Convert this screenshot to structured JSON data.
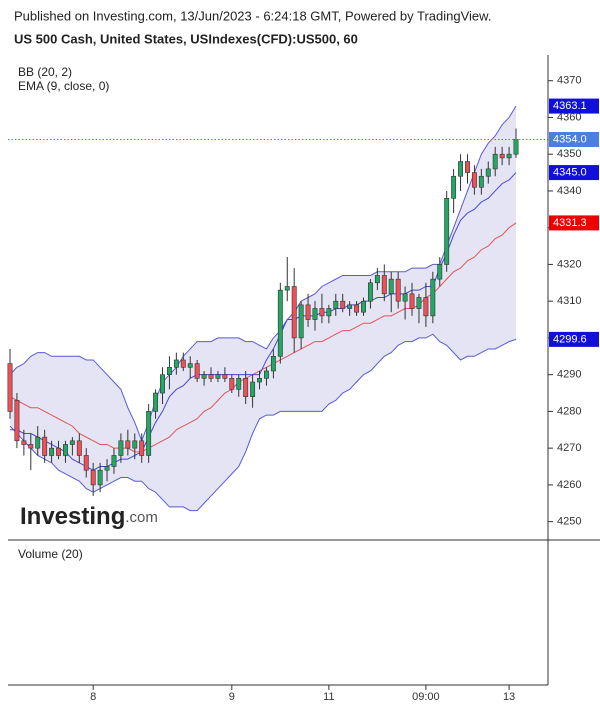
{
  "header": {
    "published": "Published on Investing.com, 13/Jun/2023 - 6:24:18 GMT, Powered by TradingView.",
    "symbol": "US 500 Cash, United States, USIndexes(CFD):US500, 60"
  },
  "watermark": {
    "brand": "Investing",
    "suffix": ".com"
  },
  "volume_pane": {
    "label": "Volume (20)"
  },
  "chart_data": {
    "type": "candlestick",
    "indicators": [
      "BB (20, 2)",
      "EMA (9, close, 0)"
    ],
    "categories": [
      null,
      null,
      null,
      null,
      null,
      null,
      null,
      null,
      null,
      null,
      null,
      null,
      "8",
      null,
      null,
      null,
      null,
      null,
      null,
      null,
      null,
      null,
      null,
      null,
      null,
      null,
      null,
      null,
      null,
      null,
      null,
      null,
      "9",
      null,
      null,
      null,
      null,
      null,
      null,
      null,
      null,
      null,
      null,
      null,
      null,
      null,
      "11",
      null,
      null,
      null,
      null,
      null,
      null,
      null,
      null,
      null,
      null,
      null,
      null,
      null,
      "09:00",
      null,
      null,
      null,
      null,
      null,
      null,
      null,
      null,
      null,
      null,
      null,
      "13",
      null
    ],
    "up_color": "#22a863",
    "down_color": "#ef4f58",
    "open": [
      4293,
      4283,
      4272,
      4271,
      4270,
      4273,
      4268,
      4270,
      4268,
      4271,
      4272,
      4268,
      4264,
      4260,
      4264,
      4265,
      4268,
      4272,
      4270,
      4272,
      4268,
      4280,
      4285,
      4290,
      4292,
      4294,
      4292,
      4293,
      4289,
      4290,
      4289,
      4290,
      4289,
      4286,
      4289,
      4284,
      4288,
      4289,
      4291,
      4295,
      4313,
      4314,
      4300,
      4309,
      4305,
      4308,
      4306,
      4308,
      4310,
      4308,
      4309,
      4307,
      4310,
      4315,
      4317,
      4312,
      4316,
      4310,
      4312,
      4308,
      4311,
      4306,
      4316,
      4320,
      4338,
      4344,
      4348,
      4345,
      4341,
      4344,
      4346,
      4350,
      4349,
      4350
    ],
    "high": [
      4297,
      4285,
      4275,
      4274,
      4276,
      4275,
      4272,
      4272,
      4272,
      4273,
      4274,
      4270,
      4266,
      4266,
      4267,
      4270,
      4274,
      4275,
      4274,
      4274,
      4282,
      4286,
      4292,
      4295,
      4296,
      4296,
      4295,
      4294,
      4291,
      4292,
      4291,
      4292,
      4290,
      4290,
      4291,
      4290,
      4291,
      4292,
      4297,
      4315,
      4322,
      4319,
      4310,
      4312,
      4310,
      4312,
      4309,
      4312,
      4312,
      4310,
      4310,
      4311,
      4316,
      4319,
      4320,
      4318,
      4318,
      4314,
      4315,
      4312,
      4315,
      4318,
      4322,
      4340,
      4346,
      4350,
      4350,
      4347,
      4346,
      4348,
      4352,
      4352,
      4352,
      4357
    ],
    "low": [
      4278,
      4270,
      4268,
      4264,
      4268,
      4266,
      4266,
      4267,
      4266,
      4268,
      4266,
      4262,
      4257,
      4258,
      4261,
      4263,
      4266,
      4268,
      4267,
      4266,
      4266,
      4278,
      4282,
      4286,
      4290,
      4291,
      4289,
      4288,
      4287,
      4288,
      4288,
      4288,
      4285,
      4284,
      4282,
      4281,
      4286,
      4287,
      4289,
      4293,
      4310,
      4296,
      4297,
      4303,
      4302,
      4304,
      4304,
      4306,
      4307,
      4306,
      4306,
      4306,
      4308,
      4313,
      4310,
      4307,
      4308,
      4305,
      4306,
      4304,
      4303,
      4304,
      4314,
      4318,
      4334,
      4340,
      4342,
      4339,
      4339,
      4342,
      4344,
      4347,
      4347,
      4349
    ],
    "close": [
      4280,
      4272,
      4271,
      4270,
      4273,
      4268,
      4270,
      4268,
      4271,
      4272,
      4268,
      4264,
      4260,
      4264,
      4265,
      4268,
      4272,
      4270,
      4272,
      4268,
      4280,
      4285,
      4290,
      4292,
      4294,
      4292,
      4293,
      4289,
      4290,
      4289,
      4290,
      4289,
      4286,
      4289,
      4284,
      4288,
      4289,
      4291,
      4295,
      4313,
      4314,
      4300,
      4309,
      4305,
      4308,
      4306,
      4308,
      4310,
      4308,
      4309,
      4307,
      4310,
      4315,
      4317,
      4312,
      4316,
      4310,
      4312,
      4308,
      4311,
      4306,
      4316,
      4320,
      4338,
      4344,
      4348,
      4345,
      4341,
      4344,
      4346,
      4350,
      4349,
      4350,
      4354
    ],
    "close_label": "4354.0",
    "close_color": "#4a7fe0",
    "series": [
      {
        "name": "BB upper",
        "color": "#5a5ad8",
        "last_label": "4363.1",
        "values": [
          4290,
          4292,
          4293,
          4295,
          4296,
          4296,
          4295,
          4295,
          4295,
          4295,
          4295,
          4294,
          4294,
          4292,
          4290,
          4288,
          4286,
          4281,
          4277,
          4272,
          4277,
          4283,
          4288,
          4290,
          4292,
          4295,
          4297,
          4299,
          4299,
          4299,
          4300,
          4300,
          4300,
          4300,
          4299,
          4299,
          4298,
          4297,
          4300,
          4302,
          4305,
          4307,
          4310,
          4311,
          4312,
          4314,
          4315,
          4316,
          4317,
          4317,
          4317,
          4317,
          4317,
          4318,
          4318,
          4318,
          4318,
          4318,
          4319,
          4319,
          4319,
          4320,
          4320,
          4325,
          4330,
          4335,
          4340,
          4345,
          4350,
          4353,
          4355,
          4358,
          4360,
          4363.1
        ]
      },
      {
        "name": "BB basis",
        "color": "#e0575b",
        "last_label": "4331.3",
        "values": [
          4284,
          4283,
          4282,
          4281,
          4281,
          4280,
          4279,
          4278,
          4277,
          4276,
          4274,
          4273,
          4272,
          4271,
          4271,
          4270,
          4270,
          4270,
          4269,
          4269,
          4270,
          4271,
          4272,
          4273,
          4275,
          4276,
          4277,
          4278,
          4280,
          4281,
          4283,
          4285,
          4286,
          4288,
          4289,
          4290,
          4291,
          4292,
          4293,
          4294,
          4295,
          4296,
          4297,
          4298,
          4299,
          4299,
          4300,
          4301,
          4302,
          4302,
          4303,
          4304,
          4304,
          4305,
          4306,
          4306,
          4307,
          4308,
          4308,
          4309,
          4311,
          4312,
          4314,
          4316,
          4318,
          4319,
          4321,
          4322,
          4324,
          4325,
          4327,
          4328,
          4330,
          4331.3
        ]
      },
      {
        "name": "BB lower",
        "color": "#5a5ad8",
        "last_label": "4299.6",
        "values": [
          4276,
          4274,
          4272,
          4270,
          4268,
          4267,
          4266,
          4264,
          4263,
          4262,
          4261,
          4259,
          4258,
          4259,
          4260,
          4261,
          4262,
          4262,
          4261,
          4261,
          4259,
          4258,
          4256,
          4254,
          4254,
          4254,
          4253,
          4253,
          4255,
          4257,
          4259,
          4261,
          4263,
          4265,
          4269,
          4274,
          4278,
          4279,
          4279,
          4280,
          4280,
          4280,
          4280,
          4280,
          4280,
          4280,
          4282,
          4283,
          4285,
          4286,
          4288,
          4290,
          4291,
          4293,
          4295,
          4296,
          4298,
          4299,
          4299,
          4300,
          4300,
          4301,
          4299,
          4298,
          4296,
          4294,
          4295,
          4295,
          4296,
          4297,
          4297,
          4298,
          4299,
          4299.6
        ]
      },
      {
        "name": "EMA",
        "color": "#4646dc",
        "last_label": "4345.0",
        "values": [
          4275,
          4275,
          4274,
          4274,
          4273,
          4272,
          4271,
          4270,
          4269,
          4267,
          4266,
          4265,
          4264,
          4265,
          4265,
          4266,
          4267,
          4267,
          4268,
          4269,
          4273,
          4277,
          4280,
          4284,
          4286,
          4287,
          4289,
          4290,
          4290,
          4290,
          4290,
          4290,
          4290,
          4290,
          4290,
          4290,
          4290,
          4294,
          4297,
          4301,
          4305,
          4305,
          4306,
          4306,
          4306,
          4307,
          4307,
          4308,
          4308,
          4309,
          4309,
          4310,
          4310,
          4311,
          4311,
          4312,
          4312,
          4312,
          4313,
          4313,
          4314,
          4314,
          4319,
          4323,
          4328,
          4332,
          4334,
          4335,
          4337,
          4338,
          4340,
          4342,
          4343,
          4345
        ]
      }
    ],
    "band_fill": "#e4e4f4",
    "ylim": [
      4245,
      4377
    ],
    "yticks": [
      4250,
      4260,
      4270,
      4280,
      4290,
      4300,
      4310,
      4320,
      4330,
      4340,
      4350,
      4360,
      4370
    ]
  }
}
